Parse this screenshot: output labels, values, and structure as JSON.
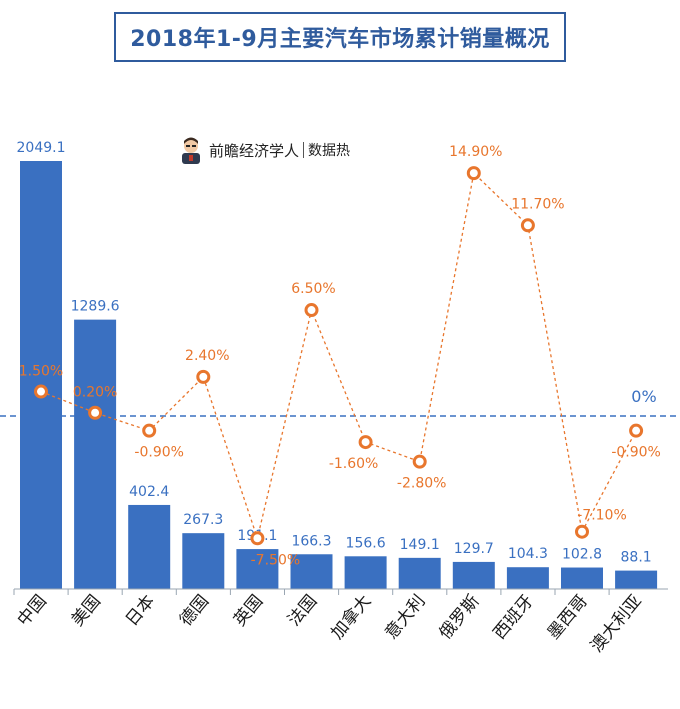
{
  "title": "2018年1-9月主要汽车市场累计销量概况",
  "brand": {
    "name": "前瞻经济学人",
    "sub": "数据热"
  },
  "zero_label": "0%",
  "chart_data": {
    "type": "bar",
    "categories": [
      "中国",
      "美国",
      "日本",
      "德国",
      "英国",
      "法国",
      "加拿大",
      "意大利",
      "俄罗斯",
      "西班牙",
      "墨西哥",
      "澳大利亚"
    ],
    "series": [
      {
        "values": [
          2049.1,
          1289.6,
          402.4,
          267.3,
          191.1,
          166.3,
          156.6,
          149.1,
          129.7,
          104.3,
          102.8,
          88.1
        ],
        "labels": [
          "2049.1",
          "1289.6",
          "402.4",
          "267.3",
          "191.1",
          "166.3",
          "156.6",
          "149.1",
          "129.7",
          "104.3",
          "102.8",
          "88.1"
        ]
      },
      {
        "type": "line",
        "values": [
          1.5,
          0.2,
          -0.9,
          2.4,
          -7.5,
          6.5,
          -1.6,
          -2.8,
          14.9,
          11.7,
          -7.1,
          -0.9
        ],
        "labels": [
          "1.50%",
          "0.20%",
          "-0.90%",
          "2.40%",
          "-7.50%",
          "6.50%",
          "-1.60%",
          "-2.80%",
          "14.90%",
          "11.70%",
          "-7.10%",
          "-0.90%"
        ]
      }
    ],
    "colors": {
      "bar": "#3a70c1",
      "line": "#e8762d",
      "zero_line": "#3a70c1",
      "title": "#2f5b9d"
    },
    "grid": false,
    "legend": "none"
  }
}
